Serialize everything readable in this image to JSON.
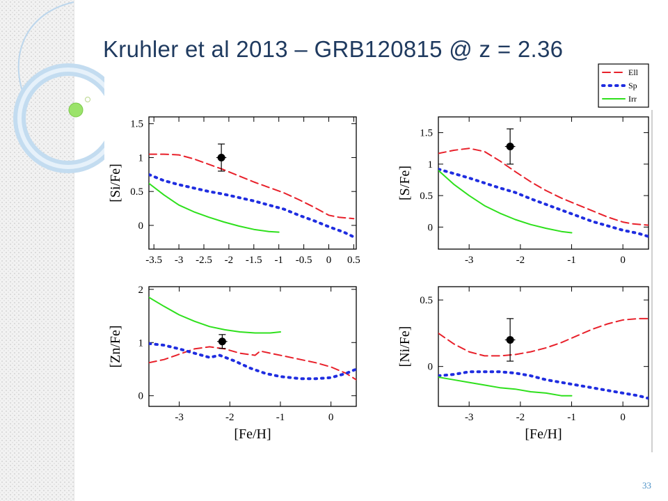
{
  "slide": {
    "title": "Kruhler et al 2013 – GRB120815 @ z = 2.36",
    "page_number": "33"
  },
  "colors": {
    "Ell": "#e8202a",
    "Sp": "#1f2de0",
    "Irr": "#2ee01c",
    "point": "#000000",
    "title": "#1f3a5f"
  },
  "chart_data": {
    "legend": [
      {
        "name": "Ell",
        "color": "#e8202a",
        "style": "dashed"
      },
      {
        "name": "Sp",
        "color": "#1f2de0",
        "style": "dotted"
      },
      {
        "name": "Irr",
        "color": "#2ee01c",
        "style": "solid"
      }
    ],
    "legend_placement": "top-right",
    "panels": [
      {
        "type": "line",
        "ylabel": "[Si/Fe]",
        "xlabel": "",
        "xlim": [
          -3.6,
          0.55
        ],
        "ylim": [
          -0.35,
          1.6
        ],
        "xticks": [
          -3.5,
          -3,
          -2.5,
          -2,
          -1.5,
          -1,
          -0.5,
          0,
          0.5
        ],
        "xtick_labels": [
          "-3.5",
          "-3",
          "-2.5",
          "-2",
          "-1.5",
          "-1",
          "-0.5",
          "0",
          "0.5"
        ],
        "yticks": [
          0,
          0.5,
          1,
          1.5
        ],
        "ytick_labels": [
          "0",
          "0.5",
          "1",
          "1.5"
        ],
        "series": [
          {
            "name": "Ell",
            "x": [
              -3.6,
              -3.3,
              -3.0,
              -2.7,
              -2.4,
              -2.1,
              -1.8,
              -1.5,
              -1.2,
              -0.9,
              -0.6,
              -0.3,
              0.0,
              0.2,
              0.5
            ],
            "y": [
              1.05,
              1.05,
              1.04,
              0.98,
              0.9,
              0.82,
              0.73,
              0.64,
              0.56,
              0.48,
              0.38,
              0.27,
              0.15,
              0.12,
              0.1
            ]
          },
          {
            "name": "Sp",
            "x": [
              -3.6,
              -3.3,
              -3.0,
              -2.7,
              -2.4,
              -2.1,
              -1.8,
              -1.5,
              -1.2,
              -0.9,
              -0.6,
              -0.3,
              0.0,
              0.3,
              0.5
            ],
            "y": [
              0.75,
              0.66,
              0.6,
              0.55,
              0.5,
              0.46,
              0.41,
              0.36,
              0.3,
              0.24,
              0.15,
              0.07,
              -0.02,
              -0.1,
              -0.17
            ]
          },
          {
            "name": "Irr",
            "x": [
              -3.6,
              -3.3,
              -3.0,
              -2.7,
              -2.4,
              -2.1,
              -1.8,
              -1.5,
              -1.2,
              -1.0
            ],
            "y": [
              0.62,
              0.45,
              0.3,
              0.2,
              0.12,
              0.05,
              -0.01,
              -0.06,
              -0.09,
              -0.1
            ]
          }
        ],
        "point": {
          "x": -2.15,
          "y": 1.0,
          "yerr": 0.2,
          "xerr": 0.1
        }
      },
      {
        "type": "line",
        "ylabel": "[S/Fe]",
        "xlabel": "",
        "xlim": [
          -3.6,
          0.5
        ],
        "ylim": [
          -0.35,
          1.75
        ],
        "xticks": [
          -3,
          -2,
          -1,
          0
        ],
        "xtick_labels": [
          "-3",
          "-2",
          "-1",
          "0"
        ],
        "yticks": [
          0,
          0.5,
          1,
          1.5
        ],
        "ytick_labels": [
          "0",
          "0.5",
          "1",
          "1.5"
        ],
        "series": [
          {
            "name": "Ell",
            "x": [
              -3.6,
              -3.3,
              -3.0,
              -2.7,
              -2.4,
              -2.1,
              -1.8,
              -1.5,
              -1.2,
              -0.9,
              -0.6,
              -0.3,
              0.0,
              0.2,
              0.5
            ],
            "y": [
              1.17,
              1.22,
              1.25,
              1.2,
              1.05,
              0.88,
              0.72,
              0.58,
              0.46,
              0.36,
              0.26,
              0.16,
              0.08,
              0.05,
              0.03
            ]
          },
          {
            "name": "Sp",
            "x": [
              -3.6,
              -3.3,
              -3.0,
              -2.7,
              -2.4,
              -2.1,
              -1.8,
              -1.5,
              -1.2,
              -0.9,
              -0.6,
              -0.3,
              0.0,
              0.3,
              0.5
            ],
            "y": [
              0.92,
              0.85,
              0.78,
              0.7,
              0.62,
              0.55,
              0.45,
              0.36,
              0.27,
              0.18,
              0.09,
              0.02,
              -0.05,
              -0.1,
              -0.15
            ]
          },
          {
            "name": "Irr",
            "x": [
              -3.6,
              -3.3,
              -3.0,
              -2.7,
              -2.4,
              -2.1,
              -1.8,
              -1.5,
              -1.2,
              -1.0
            ],
            "y": [
              0.9,
              0.68,
              0.5,
              0.34,
              0.22,
              0.12,
              0.04,
              -0.02,
              -0.07,
              -0.09
            ]
          }
        ],
        "point": {
          "x": -2.2,
          "y": 1.28,
          "yerr": 0.28,
          "xerr": 0.1
        }
      },
      {
        "type": "line",
        "ylabel": "[Zn/Fe]",
        "xlabel": "[Fe/H]",
        "xlim": [
          -3.6,
          0.5
        ],
        "ylim": [
          -0.2,
          2.05
        ],
        "xticks": [
          -3,
          -2,
          -1,
          0
        ],
        "xtick_labels": [
          "-3",
          "-2",
          "-1",
          "0"
        ],
        "yticks": [
          0,
          1,
          2
        ],
        "ytick_labels": [
          "0",
          "1",
          "2"
        ],
        "series": [
          {
            "name": "Ell",
            "x": [
              -3.6,
              -3.3,
              -3.0,
              -2.7,
              -2.4,
              -2.1,
              -1.8,
              -1.5,
              -1.4,
              -1.2,
              -0.9,
              -0.6,
              -0.3,
              0.0,
              0.3,
              0.5
            ],
            "y": [
              0.62,
              0.68,
              0.78,
              0.88,
              0.92,
              0.88,
              0.8,
              0.76,
              0.84,
              0.8,
              0.74,
              0.68,
              0.62,
              0.54,
              0.42,
              0.3
            ]
          },
          {
            "name": "Sp",
            "x": [
              -3.6,
              -3.3,
              -3.0,
              -2.7,
              -2.4,
              -2.2,
              -1.9,
              -1.6,
              -1.3,
              -1.0,
              -0.6,
              -0.3,
              0.0,
              0.3,
              0.5
            ],
            "y": [
              0.98,
              0.95,
              0.88,
              0.8,
              0.72,
              0.76,
              0.65,
              0.52,
              0.42,
              0.36,
              0.32,
              0.32,
              0.34,
              0.42,
              0.5
            ]
          },
          {
            "name": "Irr",
            "x": [
              -3.6,
              -3.3,
              -3.0,
              -2.7,
              -2.4,
              -2.1,
              -1.8,
              -1.5,
              -1.2,
              -1.0
            ],
            "y": [
              1.85,
              1.68,
              1.52,
              1.4,
              1.3,
              1.24,
              1.2,
              1.18,
              1.18,
              1.2
            ]
          }
        ],
        "point": {
          "x": -2.15,
          "y": 1.02,
          "yerr": 0.13,
          "xerr": 0.1
        }
      },
      {
        "type": "line",
        "ylabel": "[Ni/Fe]",
        "xlabel": "[Fe/H]",
        "xlim": [
          -3.6,
          0.5
        ],
        "ylim": [
          -0.3,
          0.6
        ],
        "xticks": [
          -3,
          -2,
          -1,
          0
        ],
        "xtick_labels": [
          "-3",
          "-2",
          "-1",
          "0"
        ],
        "yticks": [
          0,
          0.5
        ],
        "ytick_labels": [
          "0",
          "0.5"
        ],
        "series": [
          {
            "name": "Ell",
            "x": [
              -3.6,
              -3.3,
              -3.0,
              -2.7,
              -2.4,
              -2.1,
              -1.8,
              -1.5,
              -1.2,
              -0.9,
              -0.6,
              -0.3,
              0.0,
              0.3,
              0.5
            ],
            "y": [
              0.25,
              0.17,
              0.11,
              0.08,
              0.08,
              0.09,
              0.11,
              0.14,
              0.18,
              0.23,
              0.28,
              0.32,
              0.35,
              0.36,
              0.36
            ]
          },
          {
            "name": "Sp",
            "x": [
              -3.6,
              -3.3,
              -3.0,
              -2.7,
              -2.4,
              -2.1,
              -1.8,
              -1.5,
              -1.2,
              -0.9,
              -0.6,
              -0.3,
              0.0,
              0.3,
              0.5
            ],
            "y": [
              -0.07,
              -0.06,
              -0.04,
              -0.04,
              -0.04,
              -0.05,
              -0.07,
              -0.1,
              -0.12,
              -0.14,
              -0.16,
              -0.18,
              -0.2,
              -0.22,
              -0.24
            ]
          },
          {
            "name": "Irr",
            "x": [
              -3.6,
              -3.3,
              -3.0,
              -2.7,
              -2.4,
              -2.1,
              -1.8,
              -1.5,
              -1.2,
              -1.0
            ],
            "y": [
              -0.08,
              -0.1,
              -0.12,
              -0.14,
              -0.16,
              -0.17,
              -0.19,
              -0.2,
              -0.22,
              -0.22
            ]
          }
        ],
        "point": {
          "x": -2.2,
          "y": 0.2,
          "yerr": 0.16,
          "xerr": 0.1
        }
      }
    ]
  }
}
